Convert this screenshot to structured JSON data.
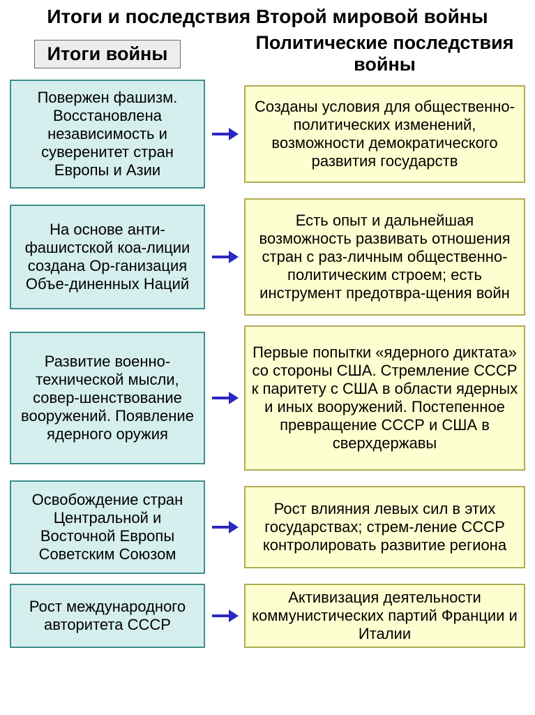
{
  "title": "Итоги и последствия Второй мировой войны",
  "title_fontsize": 28,
  "header_left": "Итоги войны",
  "header_right": "Политические последствия войны",
  "header_fontsize": 27,
  "colors": {
    "left_fill": "#d5eeee",
    "left_border": "#3d8f8c",
    "right_fill": "#feffd0",
    "right_border": "#b0ad55",
    "arrow": "#2b28c2",
    "text": "#000000",
    "hdr_left_bg": "#ededed",
    "hdr_left_border": "#6a6a6a"
  },
  "box_fontsize": 22,
  "row_gap": 14,
  "box_border_width": 2,
  "pairs": [
    {
      "left": "Повержен фашизм. Восстановлена независимость и суверенитет стран Европы и Азии",
      "right": "Созданы условия  для общественно-политических изменений, возможности демократического развития государств",
      "left_h": 156,
      "right_h": 140
    },
    {
      "left": "На основе анти-фашистской коа-лиции создана Ор-ганизация Объе-диненных Наций",
      "right": "Есть опыт и дальнейшая возможность развивать отношения стран с раз-личным общественно-политическим строем; есть инструмент предотвра-щения войн",
      "left_h": 150,
      "right_h": 168
    },
    {
      "left": "Развитие военно-технической мысли, совер-шенствование вооружений. Появление ядерного оружия",
      "right": "Первые попытки «ядерного диктата» со стороны США. Стремление  СССР  к паритету с США в области ядерных и иных вооружений. Постепенное превращение СССР и США в сверхдержавы",
      "left_h": 190,
      "right_h": 208
    },
    {
      "left": "Освобождение стран Центральной и Восточной Европы Советским Союзом",
      "right": "Рост влияния левых сил в этих государствах; стрем-ление СССР контролировать развитие региона",
      "left_h": 134,
      "right_h": 118
    },
    {
      "left": "Рост международного авторитета СССР",
      "right": "Активизация деятельности коммунистических партий Франции и Италии",
      "left_h": 92,
      "right_h": 92
    }
  ]
}
